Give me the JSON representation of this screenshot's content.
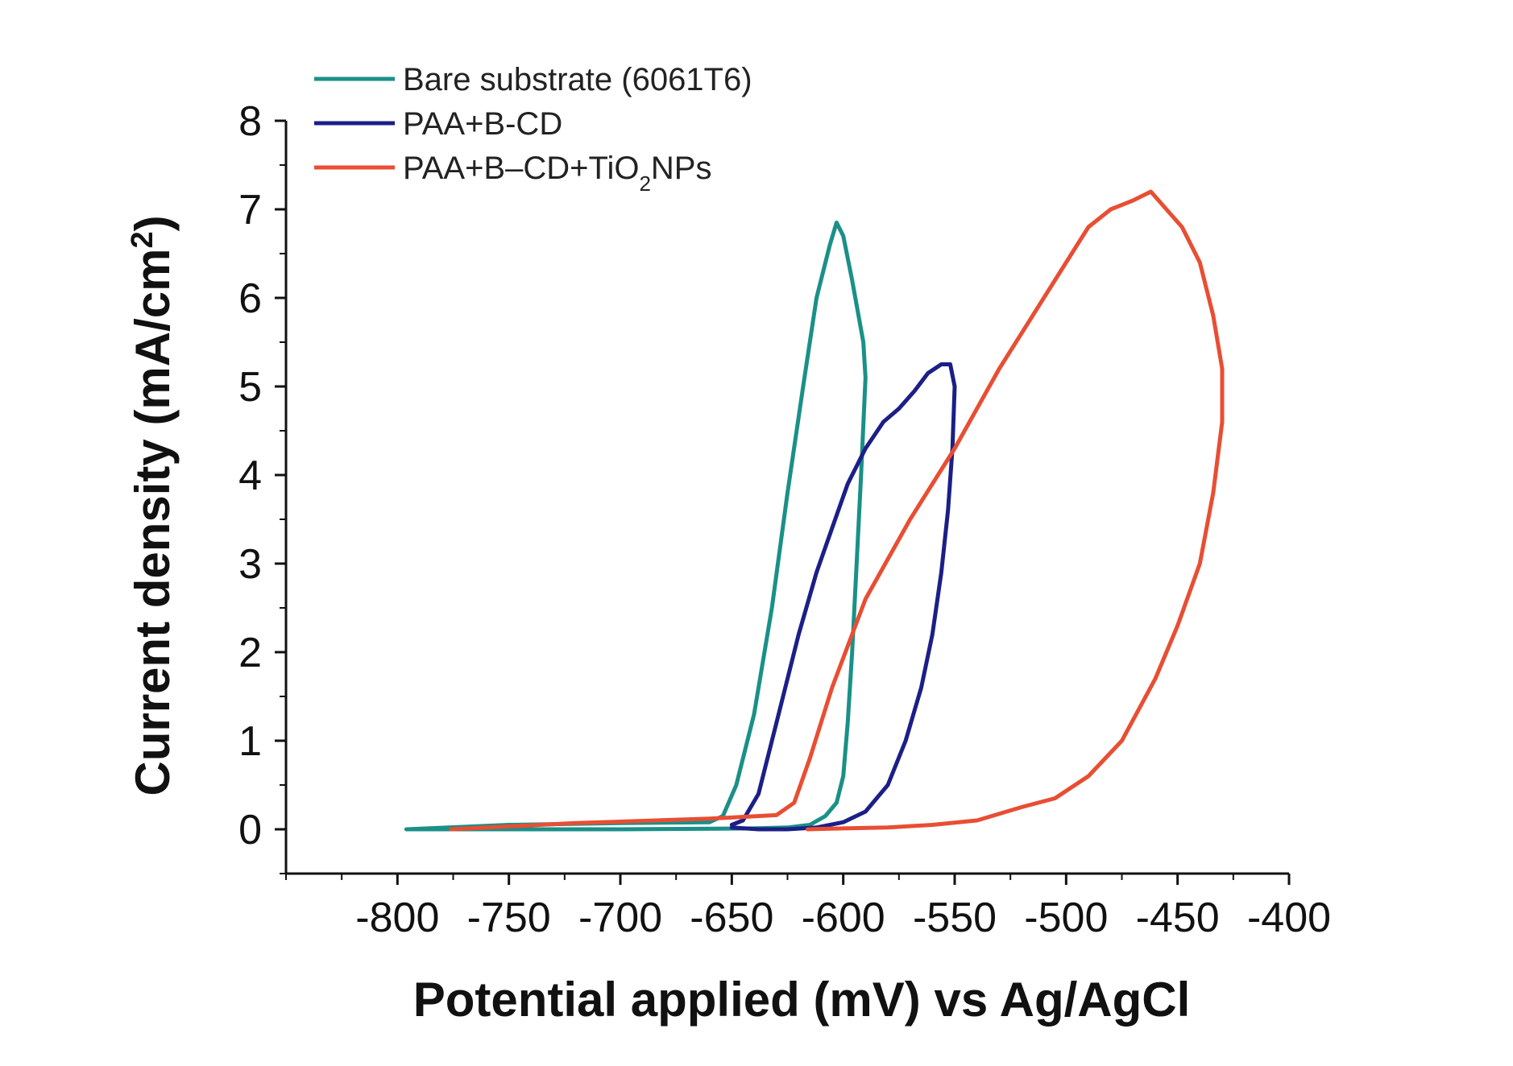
{
  "chart_data": {
    "type": "line",
    "title": "",
    "xlabel": "Potential applied (mV) vs Ag/AgCl",
    "ylabel": "Current density (mA/cm",
    "ylabel_sup": "2",
    "ylabel_close": ")",
    "xlim": [
      -850,
      -400
    ],
    "ylim": [
      -0.5,
      8
    ],
    "xticks": [
      -800,
      -750,
      -700,
      -650,
      -600,
      -550,
      -500,
      -450,
      -400
    ],
    "xtick_labels": [
      "-800",
      "-750",
      "-700",
      "-650",
      "-600",
      "-550",
      "-500",
      "-450",
      "-400"
    ],
    "yticks": [
      0,
      1,
      2,
      3,
      4,
      5,
      6,
      7,
      8
    ],
    "ytick_labels": [
      "0",
      "1",
      "2",
      "3",
      "4",
      "5",
      "6",
      "7",
      "8"
    ],
    "legend_position": "top-left",
    "series": [
      {
        "name": "Bare substrate (6061T6)",
        "color": "#1a9088",
        "x": [
          -796,
          -750,
          -700,
          -660,
          -654,
          -648,
          -640,
          -632,
          -625,
          -618,
          -612,
          -606,
          -603,
          -600,
          -596,
          -591,
          -590,
          -592,
          -594,
          -596,
          -598,
          -600,
          -603,
          -608,
          -615,
          -625,
          -640,
          -700,
          -760,
          -796
        ],
        "y": [
          0,
          0.05,
          0.07,
          0.08,
          0.15,
          0.5,
          1.3,
          2.5,
          3.8,
          5.0,
          6.0,
          6.6,
          6.85,
          6.7,
          6.2,
          5.5,
          5.1,
          4.0,
          3.0,
          2.0,
          1.2,
          0.6,
          0.3,
          0.15,
          0.05,
          0.02,
          0.01,
          0,
          0,
          0
        ]
      },
      {
        "name": "PAA+B-CD",
        "color": "#1c1f86",
        "x": [
          -650,
          -645,
          -638,
          -630,
          -620,
          -612,
          -605,
          -598,
          -590,
          -582,
          -575,
          -568,
          -562,
          -556,
          -552,
          -550,
          -551,
          -553,
          -556,
          -560,
          -565,
          -572,
          -580,
          -590,
          -600,
          -612,
          -625,
          -638,
          -650
        ],
        "y": [
          0.05,
          0.1,
          0.4,
          1.2,
          2.2,
          2.9,
          3.4,
          3.9,
          4.3,
          4.6,
          4.75,
          4.95,
          5.15,
          5.25,
          5.25,
          5.0,
          4.3,
          3.6,
          2.9,
          2.2,
          1.6,
          1.0,
          0.5,
          0.2,
          0.08,
          0.02,
          0.0,
          0.0,
          0.02
        ]
      },
      {
        "name": "PAA+B-CD+TiO2NPs",
        "name_parts": [
          "PAA+B–CD+TiO",
          "2",
          "NPs"
        ],
        "color": "#e84e33",
        "x": [
          -776,
          -720,
          -660,
          -630,
          -622,
          -615,
          -605,
          -590,
          -570,
          -550,
          -530,
          -515,
          -500,
          -490,
          -480,
          -470,
          -462,
          -455,
          -448,
          -440,
          -434,
          -430,
          -430,
          -434,
          -440,
          -450,
          -460,
          -475,
          -490,
          -505,
          -520,
          -540,
          -560,
          -580,
          -600,
          -616
        ],
        "y": [
          0,
          0.07,
          0.12,
          0.16,
          0.3,
          0.8,
          1.6,
          2.6,
          3.5,
          4.3,
          5.2,
          5.8,
          6.4,
          6.8,
          7.0,
          7.1,
          7.2,
          7.0,
          6.8,
          6.4,
          5.8,
          5.2,
          4.6,
          3.8,
          3.0,
          2.3,
          1.7,
          1.0,
          0.6,
          0.35,
          0.25,
          0.1,
          0.05,
          0.02,
          0.01,
          0.0
        ]
      }
    ]
  }
}
